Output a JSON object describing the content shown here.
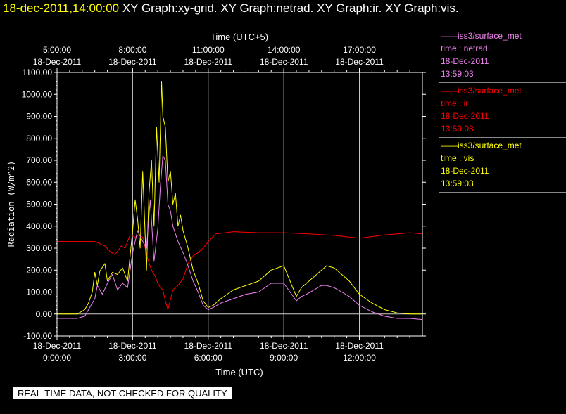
{
  "header": {
    "timestamp": "18-dec-2011,14:00:00",
    "graphs": "XY Graph:xy-grid.  XY Graph:netrad.  XY Graph:ir.  XY Graph:vis."
  },
  "disclaimer": "REAL-TIME DATA, NOT CHECKED FOR QUALITY",
  "legend": [
    {
      "source": "iss3/surface_met",
      "var": "time : netrad",
      "date": "18-Dec-2011",
      "time": "13:59:03",
      "color": "#ee82ee"
    },
    {
      "source": "iss3/surface_met",
      "var": "time : ir",
      "date": "18-Dec-2011",
      "time": "13:59:03",
      "color": "#ff0000"
    },
    {
      "source": "iss3/surface_met",
      "var": "time : vis",
      "date": "18-Dec-2011",
      "time": "13:59:03",
      "color": "#ffff00"
    }
  ],
  "chart_data": {
    "type": "line",
    "xlabel": "Time (UTC)",
    "x2label": "Time (UTC+5)",
    "ylabel": "Radiation (W/m^2)",
    "xlim": [
      0,
      14.5
    ],
    "ylim": [
      -100,
      1100
    ],
    "grid": true,
    "bottom_ticks": [
      {
        "x": 0,
        "date": "18-Dec-2011",
        "time": "0:00:00"
      },
      {
        "x": 3,
        "date": "18-Dec-2011",
        "time": "3:00:00"
      },
      {
        "x": 6,
        "date": "18-Dec-2011",
        "time": "6:00:00"
      },
      {
        "x": 9,
        "date": "18-Dec-2011",
        "time": "9:00:00"
      },
      {
        "x": 12,
        "date": "18-Dec-2011",
        "time": "12:00:00"
      }
    ],
    "top_ticks": [
      {
        "x": 0,
        "time": "5:00:00",
        "date": "18-Dec-2011"
      },
      {
        "x": 3,
        "time": "8:00:00",
        "date": "18-Dec-2011"
      },
      {
        "x": 6,
        "time": "11:00:00",
        "date": "18-Dec-2011"
      },
      {
        "x": 9,
        "time": "14:00:00",
        "date": "18-Dec-2011"
      },
      {
        "x": 12,
        "time": "17:00:00",
        "date": "18-Dec-2011"
      }
    ],
    "y_ticks": [
      "-100.00",
      "0.00",
      "100.00",
      "200.00",
      "300.00",
      "400.00",
      "500.00",
      "600.00",
      "700.00",
      "800.00",
      "900.00",
      "1000.00",
      "1100.00"
    ],
    "series": [
      {
        "name": "ir",
        "color": "#ff0000",
        "x": [
          0,
          1.5,
          1.9,
          2.1,
          2.3,
          2.55,
          2.7,
          2.9,
          3.1,
          3.25,
          3.4,
          3.5,
          3.6,
          3.75,
          3.9,
          4.0,
          4.1,
          4.2,
          4.3,
          4.4,
          4.6,
          4.8,
          5.0,
          5.2,
          5.4,
          5.6,
          5.8,
          6.0,
          6.3,
          7,
          8,
          9,
          10,
          11,
          12,
          13,
          13.5,
          14,
          14.5
        ],
        "y": [
          330,
          330,
          310,
          285,
          270,
          310,
          300,
          360,
          350,
          360,
          350,
          300,
          250,
          200,
          170,
          140,
          120,
          110,
          60,
          20,
          110,
          130,
          160,
          230,
          265,
          280,
          300,
          330,
          365,
          375,
          370,
          370,
          365,
          358,
          345,
          360,
          365,
          370,
          365
        ]
      },
      {
        "name": "vis",
        "color": "#ffff00",
        "x": [
          0,
          0.8,
          1.1,
          1.25,
          1.4,
          1.5,
          1.6,
          1.7,
          1.9,
          2.0,
          2.2,
          2.4,
          2.6,
          2.8,
          3.0,
          3.1,
          3.2,
          3.3,
          3.4,
          3.55,
          3.65,
          3.75,
          3.85,
          3.95,
          4.05,
          4.15,
          4.2,
          4.3,
          4.4,
          4.5,
          4.6,
          4.7,
          4.8,
          4.9,
          5.0,
          5.2,
          5.4,
          5.6,
          5.8,
          6.0,
          6.2,
          6.5,
          7.0,
          7.5,
          8.0,
          8.5,
          9.0,
          9.5,
          9.7,
          9.9,
          10.2,
          10.5,
          10.7,
          11.0,
          11.3,
          11.6,
          12.0,
          12.5,
          13.0,
          13.5,
          14.0,
          14.5
        ],
        "y": [
          0,
          0,
          20,
          50,
          100,
          190,
          130,
          195,
          230,
          150,
          190,
          180,
          210,
          150,
          380,
          520,
          430,
          300,
          650,
          200,
          550,
          700,
          400,
          850,
          600,
          1060,
          900,
          850,
          600,
          650,
          500,
          550,
          400,
          450,
          380,
          300,
          200,
          140,
          60,
          30,
          40,
          70,
          110,
          130,
          150,
          200,
          220,
          80,
          120,
          140,
          170,
          200,
          220,
          210,
          180,
          150,
          90,
          50,
          20,
          5,
          0,
          0
        ]
      },
      {
        "name": "netrad",
        "color": "#ee82ee",
        "x": [
          0,
          0.8,
          1.1,
          1.3,
          1.5,
          1.6,
          1.8,
          2.0,
          2.2,
          2.4,
          2.6,
          2.8,
          3.0,
          3.2,
          3.4,
          3.55,
          3.7,
          3.85,
          4.0,
          4.1,
          4.2,
          4.3,
          4.4,
          4.5,
          4.6,
          4.8,
          5.0,
          5.2,
          5.4,
          5.6,
          5.8,
          6.0,
          6.2,
          6.5,
          7.0,
          7.5,
          8.0,
          8.5,
          9.0,
          9.5,
          9.7,
          9.9,
          10.2,
          10.5,
          10.7,
          11.0,
          11.3,
          11.6,
          12.0,
          12.5,
          13.0,
          13.5,
          14.0,
          14.5
        ],
        "y": [
          -20,
          -20,
          -10,
          30,
          70,
          130,
          90,
          140,
          180,
          110,
          140,
          120,
          280,
          380,
          330,
          300,
          520,
          240,
          390,
          580,
          720,
          700,
          500,
          470,
          400,
          330,
          280,
          220,
          150,
          100,
          40,
          20,
          30,
          50,
          70,
          90,
          100,
          140,
          140,
          60,
          80,
          90,
          110,
          130,
          130,
          120,
          100,
          80,
          40,
          10,
          -10,
          -20,
          -20,
          -25
        ]
      }
    ]
  }
}
